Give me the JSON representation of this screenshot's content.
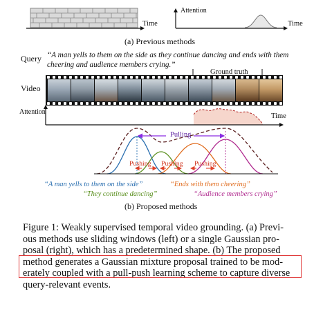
{
  "panel_a": {
    "axis_time_left": "Time",
    "axis_attention": "Attention",
    "axis_time_right": "Time",
    "caption": "(a) Previous methods"
  },
  "panel_b": {
    "query_label": "Query",
    "query_text_line1": "“A man yells to them on the side as they continue dancing and ends with them",
    "query_text_line2": "cheering and audience members crying.”",
    "video_label": "Video",
    "ground_truth_label": "Ground truth",
    "attention_label": "Attention",
    "time_label": "Time",
    "pulling_label": "Pulling",
    "pushing_labels": [
      "Pushing",
      "Pushing",
      "Pushing"
    ],
    "event_1": "“A man yells to them on the side”",
    "event_2": "“They continue dancing”",
    "event_3": "“Ends with them cheering”",
    "event_4": "“Audience members crying”",
    "caption": "(b) Proposed methods",
    "colors": {
      "event_1": "#2a6fb0",
      "event_2": "#5a8f1e",
      "event_3": "#e06a1b",
      "event_4": "#b02a8f",
      "pulling": "#8a2be2",
      "pushing": "#e0422a",
      "attention_fill": "#f4d4cb",
      "highlight_box": "#e03a3a"
    }
  },
  "figure_caption": {
    "line1": "Figure 1: Weakly supervised temporal video grounding. (a) Previ-",
    "line2": "ous methods use sliding windows (left) or a single Gaussian pro-",
    "line3": "posal (right), which has a predetermined shape. (b) The proposed",
    "line4": "method generates a Gaussian mixture proposal trained to be mod-",
    "line5": "erately coupled with a pull-push learning scheme to capture diverse",
    "line6": "query-relevant events."
  }
}
